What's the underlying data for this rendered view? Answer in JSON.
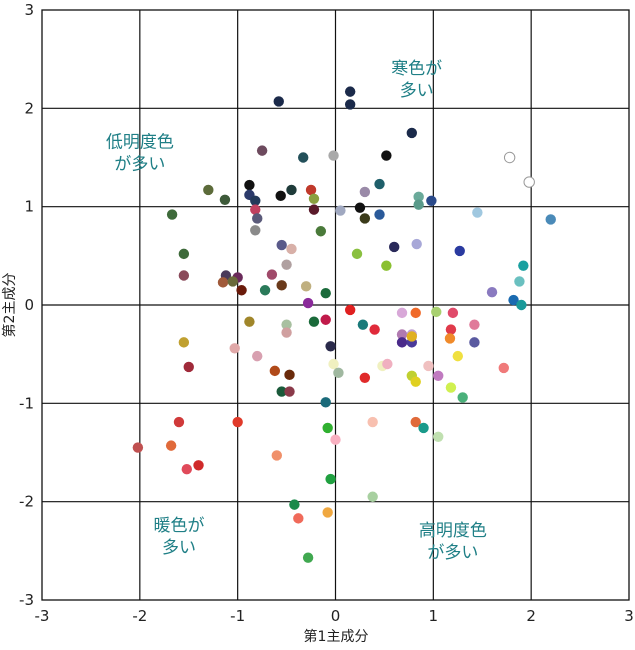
{
  "chart_data": {
    "type": "scatter",
    "xlabel": "第1主成分",
    "ylabel": "第2主成分",
    "xlim": [
      -3,
      3
    ],
    "ylim": [
      -3,
      3
    ],
    "grid": true,
    "xticks": [
      "-3",
      "-2",
      "-1",
      "0",
      "1",
      "2",
      "3"
    ],
    "yticks": [
      "3",
      "2",
      "1",
      "0",
      "-1",
      "-2",
      "-3"
    ],
    "annotations": [
      {
        "lines": [
          "寒色が",
          "多い"
        ],
        "x": 0.83,
        "y": 2.35,
        "quadrant": "top-right"
      },
      {
        "lines": [
          "低明度色",
          "が多い"
        ],
        "x": -2.0,
        "y": 1.6,
        "quadrant": "top-left"
      },
      {
        "lines": [
          "暖色が",
          "多い"
        ],
        "x": -1.6,
        "y": -2.3,
        "quadrant": "bottom-left"
      },
      {
        "lines": [
          "高明度色",
          "が多い"
        ],
        "x": 1.2,
        "y": -2.35,
        "quadrant": "bottom-right"
      }
    ],
    "points": [
      {
        "x": -0.58,
        "y": 2.07,
        "color": "#1b2a4a"
      },
      {
        "x": 0.15,
        "y": 2.17,
        "color": "#1b2a4a"
      },
      {
        "x": 0.15,
        "y": 2.04,
        "color": "#1b2a4a"
      },
      {
        "x": 0.78,
        "y": 1.75,
        "color": "#1b2a4a"
      },
      {
        "x": -0.75,
        "y": 1.57,
        "color": "#6d4a5e"
      },
      {
        "x": -0.33,
        "y": 1.5,
        "color": "#23505a"
      },
      {
        "x": -0.02,
        "y": 1.52,
        "color": "#a9a9a9"
      },
      {
        "x": 0.52,
        "y": 1.52,
        "color": "#111111"
      },
      {
        "x": 1.78,
        "y": 1.5,
        "color": "#ffffff",
        "stroke": "#999999"
      },
      {
        "x": 1.98,
        "y": 1.25,
        "color": "#ffffff",
        "stroke": "#999999"
      },
      {
        "x": -1.3,
        "y": 1.17,
        "color": "#5c6b3a"
      },
      {
        "x": -0.88,
        "y": 1.22,
        "color": "#111111"
      },
      {
        "x": -0.45,
        "y": 1.17,
        "color": "#1f3b3a"
      },
      {
        "x": -0.25,
        "y": 1.17,
        "color": "#c0392b"
      },
      {
        "x": -0.22,
        "y": 1.08,
        "color": "#8aa040"
      },
      {
        "x": 0.3,
        "y": 1.15,
        "color": "#9a8aa8"
      },
      {
        "x": 0.45,
        "y": 1.23,
        "color": "#1f5f6a"
      },
      {
        "x": -1.13,
        "y": 1.07,
        "color": "#3e5a3a"
      },
      {
        "x": -0.88,
        "y": 1.12,
        "color": "#2b3a6b"
      },
      {
        "x": -0.82,
        "y": 1.06,
        "color": "#23395a"
      },
      {
        "x": -0.56,
        "y": 1.11,
        "color": "#111111"
      },
      {
        "x": 0.85,
        "y": 1.1,
        "color": "#6aaa9a"
      },
      {
        "x": 0.85,
        "y": 1.02,
        "color": "#5a9a8a"
      },
      {
        "x": 0.98,
        "y": 1.06,
        "color": "#2a4a8a"
      },
      {
        "x": -1.67,
        "y": 0.92,
        "color": "#3e6a3a"
      },
      {
        "x": -0.82,
        "y": 0.97,
        "color": "#c04060"
      },
      {
        "x": -0.22,
        "y": 0.97,
        "color": "#5a1a2a"
      },
      {
        "x": 0.05,
        "y": 0.96,
        "color": "#a0a8c0"
      },
      {
        "x": 0.25,
        "y": 0.99,
        "color": "#111111"
      },
      {
        "x": 0.3,
        "y": 0.88,
        "color": "#3a3a1a"
      },
      {
        "x": 0.45,
        "y": 0.92,
        "color": "#2a5a9a"
      },
      {
        "x": 1.45,
        "y": 0.94,
        "color": "#a0c8e0"
      },
      {
        "x": 2.2,
        "y": 0.87,
        "color": "#4a8ab8"
      },
      {
        "x": -0.8,
        "y": 0.88,
        "color": "#5a5a7a"
      },
      {
        "x": -0.82,
        "y": 0.76,
        "color": "#8a8a8a"
      },
      {
        "x": -0.15,
        "y": 0.75,
        "color": "#4a7a3a"
      },
      {
        "x": -1.55,
        "y": 0.52,
        "color": "#3e6a3a"
      },
      {
        "x": -0.55,
        "y": 0.61,
        "color": "#5a5a8a"
      },
      {
        "x": -0.45,
        "y": 0.57,
        "color": "#d8b0a8"
      },
      {
        "x": 0.6,
        "y": 0.59,
        "color": "#2a2a5a"
      },
      {
        "x": 0.83,
        "y": 0.62,
        "color": "#a8a8d8"
      },
      {
        "x": 1.27,
        "y": 0.55,
        "color": "#2a3aa0"
      },
      {
        "x": 0.22,
        "y": 0.52,
        "color": "#8ac040"
      },
      {
        "x": -0.5,
        "y": 0.41,
        "color": "#b0a0a0"
      },
      {
        "x": 0.52,
        "y": 0.4,
        "color": "#8ac030"
      },
      {
        "x": 1.92,
        "y": 0.4,
        "color": "#1aa0a0"
      },
      {
        "x": -1.55,
        "y": 0.3,
        "color": "#8a4a5a"
      },
      {
        "x": -1.12,
        "y": 0.3,
        "color": "#4a3a5a"
      },
      {
        "x": -1.0,
        "y": 0.28,
        "color": "#6a2a5a"
      },
      {
        "x": -0.65,
        "y": 0.31,
        "color": "#a04a6a"
      },
      {
        "x": -1.15,
        "y": 0.23,
        "color": "#a05a3a"
      },
      {
        "x": -1.05,
        "y": 0.24,
        "color": "#6a6a3a"
      },
      {
        "x": -0.96,
        "y": 0.15,
        "color": "#6a1a0a"
      },
      {
        "x": -0.72,
        "y": 0.15,
        "color": "#2a7a5a"
      },
      {
        "x": -0.55,
        "y": 0.2,
        "color": "#6a3a1a"
      },
      {
        "x": -0.3,
        "y": 0.19,
        "color": "#c0b080"
      },
      {
        "x": -0.1,
        "y": 0.12,
        "color": "#1a6a3a"
      },
      {
        "x": 1.6,
        "y": 0.13,
        "color": "#8a7ac0"
      },
      {
        "x": 1.88,
        "y": 0.24,
        "color": "#6ac0c0"
      },
      {
        "x": 1.82,
        "y": 0.05,
        "color": "#1a6ab0"
      },
      {
        "x": 1.9,
        "y": 0.0,
        "color": "#1a9a9a"
      },
      {
        "x": -0.28,
        "y": 0.02,
        "color": "#8a2a9a"
      },
      {
        "x": 0.15,
        "y": -0.05,
        "color": "#e02020"
      },
      {
        "x": 0.68,
        "y": -0.08,
        "color": "#d8a8d8"
      },
      {
        "x": 0.82,
        "y": -0.08,
        "color": "#f06a2a"
      },
      {
        "x": 1.03,
        "y": -0.07,
        "color": "#a8d070"
      },
      {
        "x": 1.2,
        "y": -0.08,
        "color": "#e04a6a"
      },
      {
        "x": -0.88,
        "y": -0.17,
        "color": "#a0862a"
      },
      {
        "x": -0.5,
        "y": -0.2,
        "color": "#a8c0a0"
      },
      {
        "x": -0.22,
        "y": -0.17,
        "color": "#1a6a3a"
      },
      {
        "x": -0.1,
        "y": -0.15,
        "color": "#c01a4a"
      },
      {
        "x": 0.28,
        "y": -0.2,
        "color": "#1a7a7a"
      },
      {
        "x": 0.4,
        "y": -0.25,
        "color": "#e02a3a"
      },
      {
        "x": 0.68,
        "y": -0.3,
        "color": "#b07ab0"
      },
      {
        "x": 0.78,
        "y": -0.3,
        "color": "#c0a0d0"
      },
      {
        "x": 1.18,
        "y": -0.25,
        "color": "#e03a4a"
      },
      {
        "x": 1.42,
        "y": -0.2,
        "color": "#e07a9a"
      },
      {
        "x": -0.5,
        "y": -0.28,
        "color": "#d0a0a0"
      },
      {
        "x": -0.05,
        "y": -0.42,
        "color": "#2a2a4a"
      },
      {
        "x": 0.68,
        "y": -0.38,
        "color": "#4a2a8a"
      },
      {
        "x": 0.78,
        "y": -0.38,
        "color": "#4a3a9a"
      },
      {
        "x": 0.78,
        "y": -0.32,
        "color": "#e0b020"
      },
      {
        "x": 1.17,
        "y": -0.34,
        "color": "#f08a2a"
      },
      {
        "x": 1.42,
        "y": -0.38,
        "color": "#5a5aa0"
      },
      {
        "x": -1.55,
        "y": -0.38,
        "color": "#c0a030"
      },
      {
        "x": -1.03,
        "y": -0.44,
        "color": "#e0a8a8"
      },
      {
        "x": -0.8,
        "y": -0.52,
        "color": "#d8a0b0"
      },
      {
        "x": -1.5,
        "y": -0.63,
        "color": "#a02a3a"
      },
      {
        "x": -0.62,
        "y": -0.67,
        "color": "#b04a1a"
      },
      {
        "x": -0.47,
        "y": -0.71,
        "color": "#6a2a0a"
      },
      {
        "x": -0.02,
        "y": -0.6,
        "color": "#f0f0c0"
      },
      {
        "x": 0.03,
        "y": -0.69,
        "color": "#a0b8a0"
      },
      {
        "x": 0.3,
        "y": -0.74,
        "color": "#e02a2a"
      },
      {
        "x": 0.48,
        "y": -0.62,
        "color": "#f0f0c0"
      },
      {
        "x": 0.53,
        "y": -0.6,
        "color": "#f0b0c0"
      },
      {
        "x": 0.78,
        "y": -0.72,
        "color": "#c0d030"
      },
      {
        "x": 0.82,
        "y": -0.78,
        "color": "#e0d020"
      },
      {
        "x": 0.95,
        "y": -0.62,
        "color": "#f0c0c0"
      },
      {
        "x": 1.05,
        "y": -0.72,
        "color": "#c07ac0"
      },
      {
        "x": 1.25,
        "y": -0.52,
        "color": "#f0e040"
      },
      {
        "x": 1.72,
        "y": -0.64,
        "color": "#f07a7a"
      },
      {
        "x": -0.55,
        "y": -0.88,
        "color": "#1a5a3a"
      },
      {
        "x": -0.47,
        "y": -0.88,
        "color": "#8a3a4a"
      },
      {
        "x": 1.18,
        "y": -0.84,
        "color": "#d0f050"
      },
      {
        "x": 1.3,
        "y": -0.94,
        "color": "#4ab07a"
      },
      {
        "x": -0.1,
        "y": -0.99,
        "color": "#1a6a7a"
      },
      {
        "x": -1.6,
        "y": -1.19,
        "color": "#d03a3a"
      },
      {
        "x": -1.0,
        "y": -1.19,
        "color": "#e03a2a"
      },
      {
        "x": -0.08,
        "y": -1.25,
        "color": "#30b030"
      },
      {
        "x": 0.38,
        "y": -1.19,
        "color": "#f8c0b0"
      },
      {
        "x": 0.82,
        "y": -1.19,
        "color": "#e06a3a"
      },
      {
        "x": 0.9,
        "y": -1.25,
        "color": "#1a9a8a"
      },
      {
        "x": 1.05,
        "y": -1.34,
        "color": "#c0e0b0"
      },
      {
        "x": 0.0,
        "y": -1.37,
        "color": "#f8b0c0"
      },
      {
        "x": -2.02,
        "y": -1.45,
        "color": "#c05050"
      },
      {
        "x": -1.68,
        "y": -1.43,
        "color": "#e06a3a"
      },
      {
        "x": -0.6,
        "y": -1.53,
        "color": "#f0906a"
      },
      {
        "x": -1.52,
        "y": -1.67,
        "color": "#e04a5a"
      },
      {
        "x": -1.4,
        "y": -1.63,
        "color": "#d02a2a"
      },
      {
        "x": -0.05,
        "y": -1.77,
        "color": "#20a040"
      },
      {
        "x": 0.38,
        "y": -1.95,
        "color": "#a8d0a0"
      },
      {
        "x": -0.42,
        "y": -2.03,
        "color": "#1a8a4a"
      },
      {
        "x": -0.38,
        "y": -2.17,
        "color": "#f06a5a"
      },
      {
        "x": -0.08,
        "y": -2.11,
        "color": "#f0a840"
      },
      {
        "x": -0.28,
        "y": -2.57,
        "color": "#40a850"
      }
    ]
  }
}
